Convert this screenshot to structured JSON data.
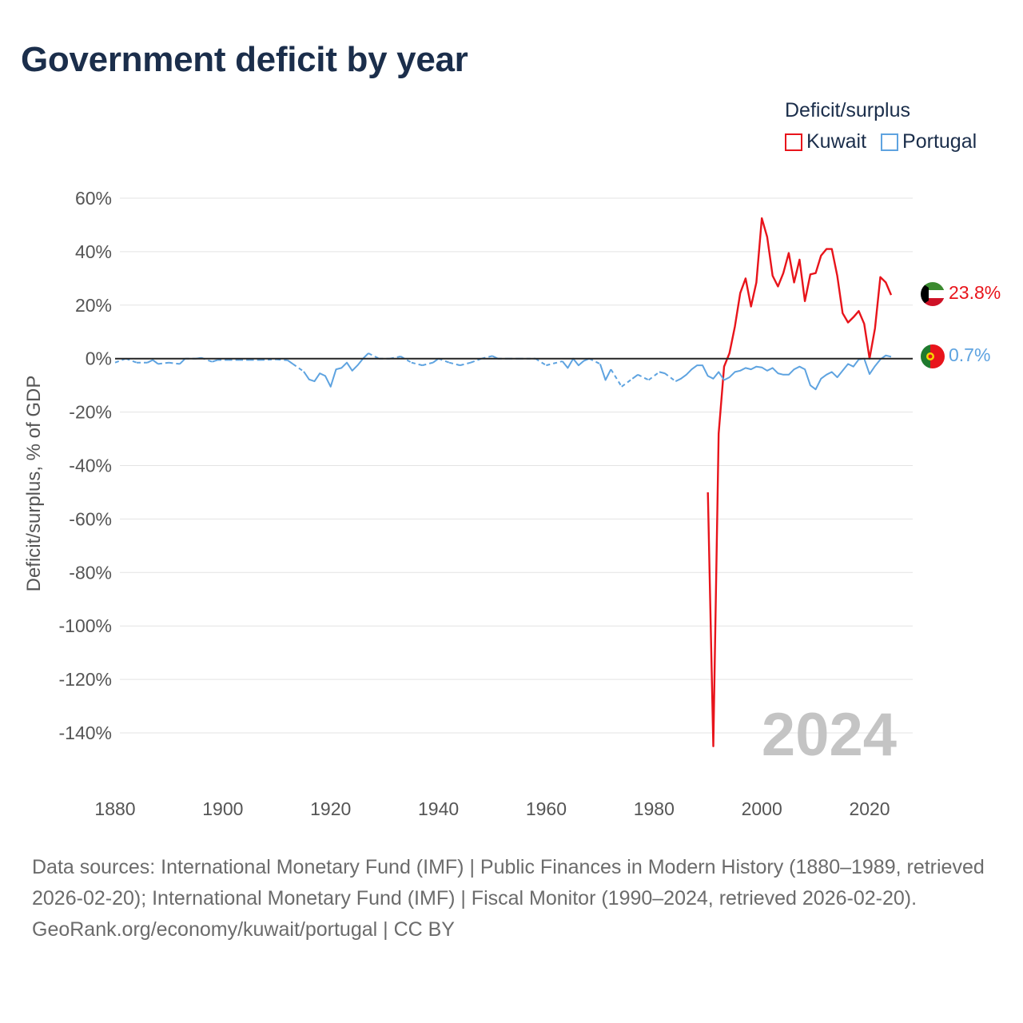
{
  "title": "Government deficit by year",
  "legend": {
    "title": "Deficit/surplus",
    "items": [
      {
        "label": "Kuwait",
        "color": "#e8141b"
      },
      {
        "label": "Portugal",
        "color": "#5ea3e0"
      }
    ]
  },
  "footer": {
    "sources": "Data sources: International Monetary Fund (IMF) | Public Finances in Modern History (1880–1989, retrieved 2026-02-20); International Monetary Fund (IMF) | Fiscal Monitor (1990–2024, retrieved 2026-02-20).",
    "credit": "GeoRank.org/economy/kuwait/portugal | CC BY"
  },
  "chart_data": {
    "type": "line",
    "title": "Government deficit by year",
    "xlabel": "",
    "ylabel": "Deficit/surplus, % of GDP",
    "xlim": [
      1880,
      2024
    ],
    "ylim": [
      -160,
      60
    ],
    "x_ticks": [
      1880,
      1900,
      1920,
      1940,
      1960,
      1980,
      2000,
      2020
    ],
    "x_tick_labels": [
      "1880",
      "1900",
      "1920",
      "1940",
      "1960",
      "1980",
      "2000",
      "2020"
    ],
    "y_ticks": [
      60,
      40,
      20,
      0,
      -20,
      -40,
      -60,
      -80,
      -100,
      -120,
      -140
    ],
    "y_tick_labels": [
      "60%",
      "40%",
      "20%",
      "0%",
      "-20%",
      "-40%",
      "-60%",
      "-80%",
      "-100%",
      "-120%",
      "-140%"
    ],
    "year_label": "2024",
    "zero_line": true,
    "series": [
      {
        "name": "Kuwait",
        "color": "#e8141b",
        "end_label": "23.8%",
        "x": [
          1990,
          1991,
          1992,
          1993,
          1994,
          1995,
          1996,
          1997,
          1998,
          1999,
          2000,
          2001,
          2002,
          2003,
          2004,
          2005,
          2006,
          2007,
          2008,
          2009,
          2010,
          2011,
          2012,
          2013,
          2014,
          2015,
          2016,
          2017,
          2018,
          2019,
          2020,
          2021,
          2022,
          2023,
          2024
        ],
        "values": [
          -50,
          -145,
          -28,
          -3,
          2,
          12,
          24.5,
          30,
          19.5,
          28.5,
          52.5,
          45.5,
          31,
          27,
          32,
          39.5,
          28.5,
          37,
          21.5,
          31.5,
          32,
          38.5,
          41,
          41,
          31,
          17,
          13.5,
          15.5,
          17.8,
          13,
          0,
          11.3,
          30.5,
          28.5,
          23.8
        ]
      },
      {
        "name": "Portugal",
        "color": "#5ea3e0",
        "end_label": "0.7%",
        "x": [
          1880,
          1882,
          1884,
          1886,
          1887,
          1888,
          1890,
          1892,
          1893,
          1895,
          1896,
          1898,
          1899,
          1901,
          1903,
          1905,
          1907,
          1910,
          1912,
          1913,
          1915,
          1916,
          1917,
          1918,
          1919,
          1920,
          1921,
          1922,
          1923,
          1924,
          1925,
          1926,
          1927,
          1929,
          1931,
          1933,
          1935,
          1937,
          1939,
          1940,
          1942,
          1944,
          1946,
          1948,
          1950,
          1951,
          1953,
          1955,
          1958,
          1960,
          1963,
          1964,
          1965,
          1966,
          1967,
          1968,
          1970,
          1971,
          1972,
          1974,
          1976,
          1977,
          1979,
          1981,
          1982,
          1984,
          1985,
          1986,
          1987,
          1988,
          1989,
          1990,
          1991,
          1992,
          1993,
          1994,
          1995,
          1996,
          1997,
          1998,
          1999,
          2000,
          2001,
          2002,
          2003,
          2004,
          2005,
          2006,
          2007,
          2008,
          2009,
          2010,
          2011,
          2012,
          2013,
          2014,
          2015,
          2016,
          2017,
          2018,
          2019,
          2020,
          2021,
          2022,
          2023,
          2024
        ],
        "values": [
          -1.5,
          0,
          -1.5,
          -1.5,
          -0.5,
          -2,
          -1.5,
          -2,
          0,
          0,
          0.3,
          -1.2,
          -0.5,
          -0.5,
          -0.5,
          -0.5,
          -0.5,
          -0.3,
          -0.6,
          -2,
          -4.8,
          -7.8,
          -8.5,
          -5.5,
          -6.5,
          -10.5,
          -4,
          -3.5,
          -1.5,
          -4.5,
          -2.5,
          0,
          2,
          0,
          0,
          0.8,
          -1.5,
          -2.5,
          -1.5,
          0,
          -1.5,
          -2.5,
          -1.5,
          0,
          1,
          0,
          0,
          0,
          0,
          -2.5,
          -1,
          -3.5,
          0,
          -2.5,
          -0.8,
          0,
          -2,
          -8,
          -4,
          -10.5,
          -7.5,
          -6,
          -8,
          -5,
          -5.5,
          -8.5,
          -7.5,
          -6,
          -4,
          -2.5,
          -2.5,
          -6.5,
          -7.5,
          -5,
          -8,
          -7,
          -5,
          -4.5,
          -3.5,
          -4,
          -3,
          -3.3,
          -4.5,
          -3.5,
          -5.5,
          -6,
          -6,
          -4,
          -3,
          -4,
          -10,
          -11.5,
          -7.5,
          -6,
          -5,
          -7,
          -4.5,
          -2,
          -3,
          -0.3,
          0,
          -5.8,
          -2.8,
          -0.3,
          1.2,
          0.7
        ]
      }
    ]
  }
}
